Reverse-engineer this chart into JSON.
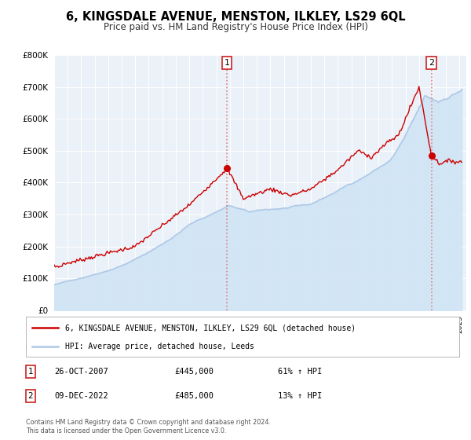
{
  "title": "6, KINGSDALE AVENUE, MENSTON, ILKLEY, LS29 6QL",
  "subtitle": "Price paid vs. HM Land Registry's House Price Index (HPI)",
  "legend_line1": "6, KINGSDALE AVENUE, MENSTON, ILKLEY, LS29 6QL (detached house)",
  "legend_line2": "HPI: Average price, detached house, Leeds",
  "annotation1_date": "26-OCT-2007",
  "annotation1_price": "£445,000",
  "annotation1_hpi": "61% ↑ HPI",
  "annotation2_date": "09-DEC-2022",
  "annotation2_price": "£485,000",
  "annotation2_hpi": "13% ↑ HPI",
  "footer1": "Contains HM Land Registry data © Crown copyright and database right 2024.",
  "footer2": "This data is licensed under the Open Government Licence v3.0.",
  "hpi_color": "#adc8e6",
  "hpi_fill_color": "#d0e4f5",
  "price_color": "#cc0000",
  "plot_bg_color": "#eaf1f8",
  "vline_color": "#e08080",
  "ylim": [
    0,
    800000
  ],
  "xlim_start": 1995.0,
  "xlim_end": 2025.5,
  "sale1_x": 2007.792,
  "sale1_y": 445000,
  "sale2_x": 2022.917,
  "sale2_y": 485000
}
